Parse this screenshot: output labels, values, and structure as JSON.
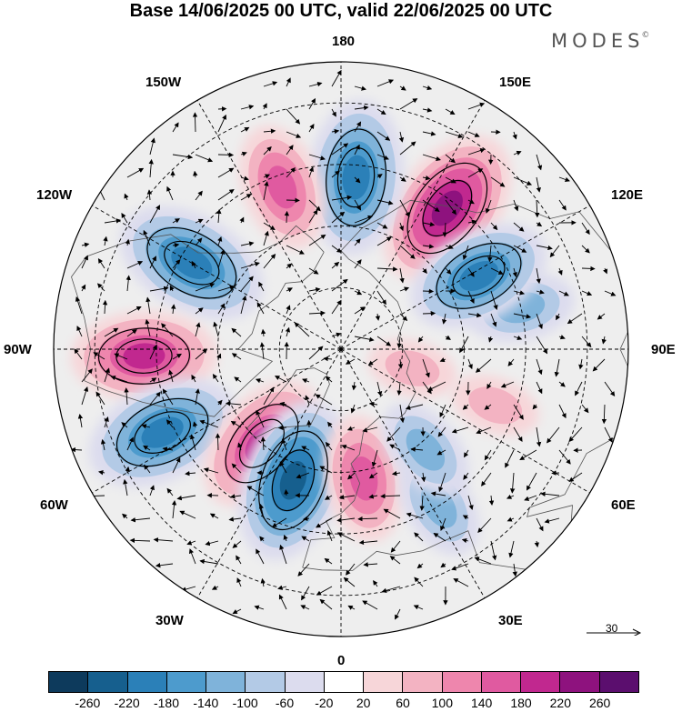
{
  "title": "Base 14/06/2025 00 UTC, valid 22/06/2025 00 UTC",
  "brand": "MODES",
  "brand_mark": "©",
  "longitude_labels": {
    "top": "180",
    "bottom": "0",
    "left": "90W",
    "right": "90E",
    "upper_left_outer": "150W",
    "upper_right_outer": "150E",
    "left_upper": "120W",
    "right_upper": "120E",
    "left_lower": "60W",
    "right_lower": "60E",
    "lower_left": "30W",
    "lower_right": "30E"
  },
  "reference_vector": {
    "label": "30"
  },
  "colorbar": {
    "colors": [
      "#0d3a5c",
      "#165f8e",
      "#2b80b8",
      "#4d9bcd",
      "#7fb3da",
      "#b3cae6",
      "#dcdcee",
      "#ffffff",
      "#f7d6d9",
      "#f3b3c2",
      "#ee86ad",
      "#e05aa0",
      "#c1288f",
      "#8e127e",
      "#5b0e6e"
    ],
    "tick_labels": [
      "-260",
      "-220",
      "-180",
      "-140",
      "-100",
      "-60",
      "-20",
      "20",
      "60",
      "100",
      "140",
      "180",
      "220",
      "260"
    ]
  },
  "anomaly_centres": [
    {
      "sign": "positive",
      "level": 220,
      "lon": 143,
      "lat": 47
    },
    {
      "sign": "negative",
      "level": -200,
      "lon": 175,
      "lat": 48
    },
    {
      "sign": "positive",
      "level": 140,
      "lon": -160,
      "lat": 48
    },
    {
      "sign": "negative",
      "level": -200,
      "lon": -120,
      "lat": 48
    },
    {
      "sign": "positive",
      "level": 180,
      "lon": -88,
      "lat": 42
    },
    {
      "sign": "negative",
      "level": -200,
      "lon": -65,
      "lat": 42
    },
    {
      "sign": "positive",
      "level": 180,
      "lon": -40,
      "lat": 60
    },
    {
      "sign": "negative",
      "level": -220,
      "lon": -20,
      "lat": 56
    },
    {
      "sign": "positive",
      "level": 140,
      "lon": 10,
      "lat": 58
    },
    {
      "sign": "negative",
      "level": -100,
      "lon": 32,
      "lat": 45
    },
    {
      "sign": "negative",
      "level": -100,
      "lon": 40,
      "lat": 58
    },
    {
      "sign": "positive",
      "level": 60,
      "lon": 70,
      "lat": 50
    },
    {
      "sign": "negative",
      "level": -100,
      "lon": 103,
      "lat": 45
    },
    {
      "sign": "negative",
      "level": -180,
      "lon": 118,
      "lat": 52
    },
    {
      "sign": "positive",
      "level": 60,
      "lon": 75,
      "lat": 72
    }
  ]
}
